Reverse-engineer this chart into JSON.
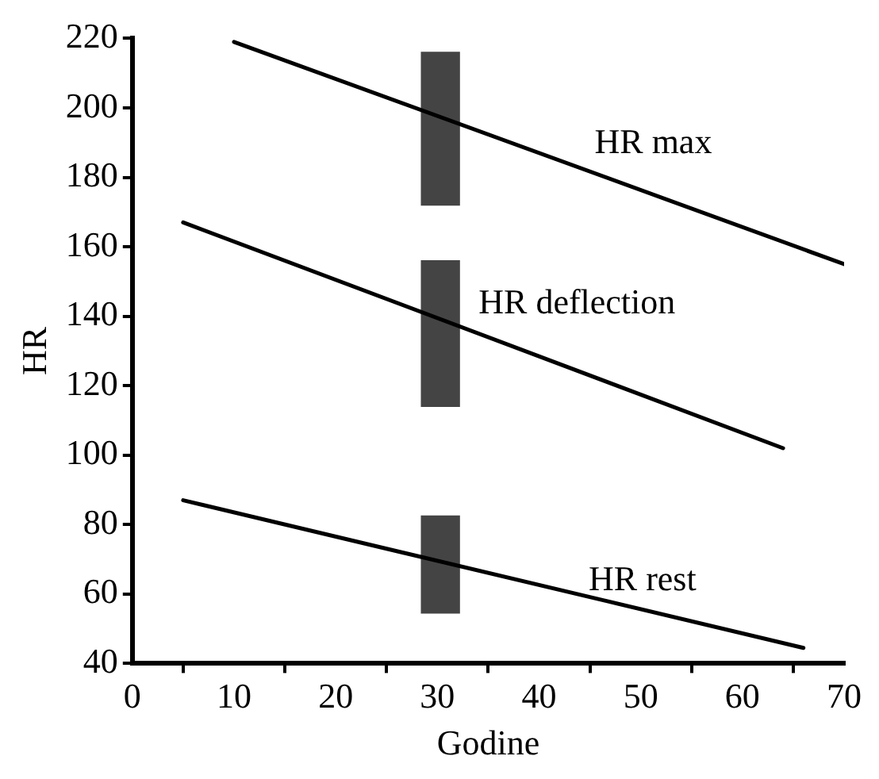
{
  "chart_data": {
    "type": "line",
    "xlabel": "Godine",
    "ylabel": "HR",
    "xlim": [
      0,
      70
    ],
    "xticks": [
      0,
      10,
      20,
      30,
      40,
      50,
      60,
      70
    ],
    "ylim": [
      40,
      220
    ],
    "yticks": [
      40,
      60,
      80,
      100,
      120,
      140,
      160,
      180,
      200,
      220
    ],
    "grid": false,
    "legend": false,
    "marker": "none",
    "line_style": "solid",
    "series": [
      {
        "name": "HR max",
        "color": "#000000",
        "x": [
          10,
          70
        ],
        "values": [
          219,
          155
        ]
      },
      {
        "name": "HR deflection",
        "color": "#000000",
        "x": [
          5,
          64
        ],
        "values": [
          167,
          102
        ]
      },
      {
        "name": "HR rest",
        "color": "#000000",
        "x": [
          5,
          66
        ],
        "values": [
          87,
          44.5
        ]
      },
      {
        "type": "bar",
        "color": "#444444",
        "x": [
          30.3
        ],
        "base": [
          172
        ],
        "values": [
          44
        ]
      },
      {
        "type": "bar",
        "color": "#444444",
        "x": [
          30.3
        ],
        "base": [
          114
        ],
        "values": [
          42
        ]
      },
      {
        "type": "bar",
        "color": "#444444",
        "x": [
          30.3
        ],
        "base": [
          54.5
        ],
        "values": [
          28
        ]
      }
    ]
  }
}
